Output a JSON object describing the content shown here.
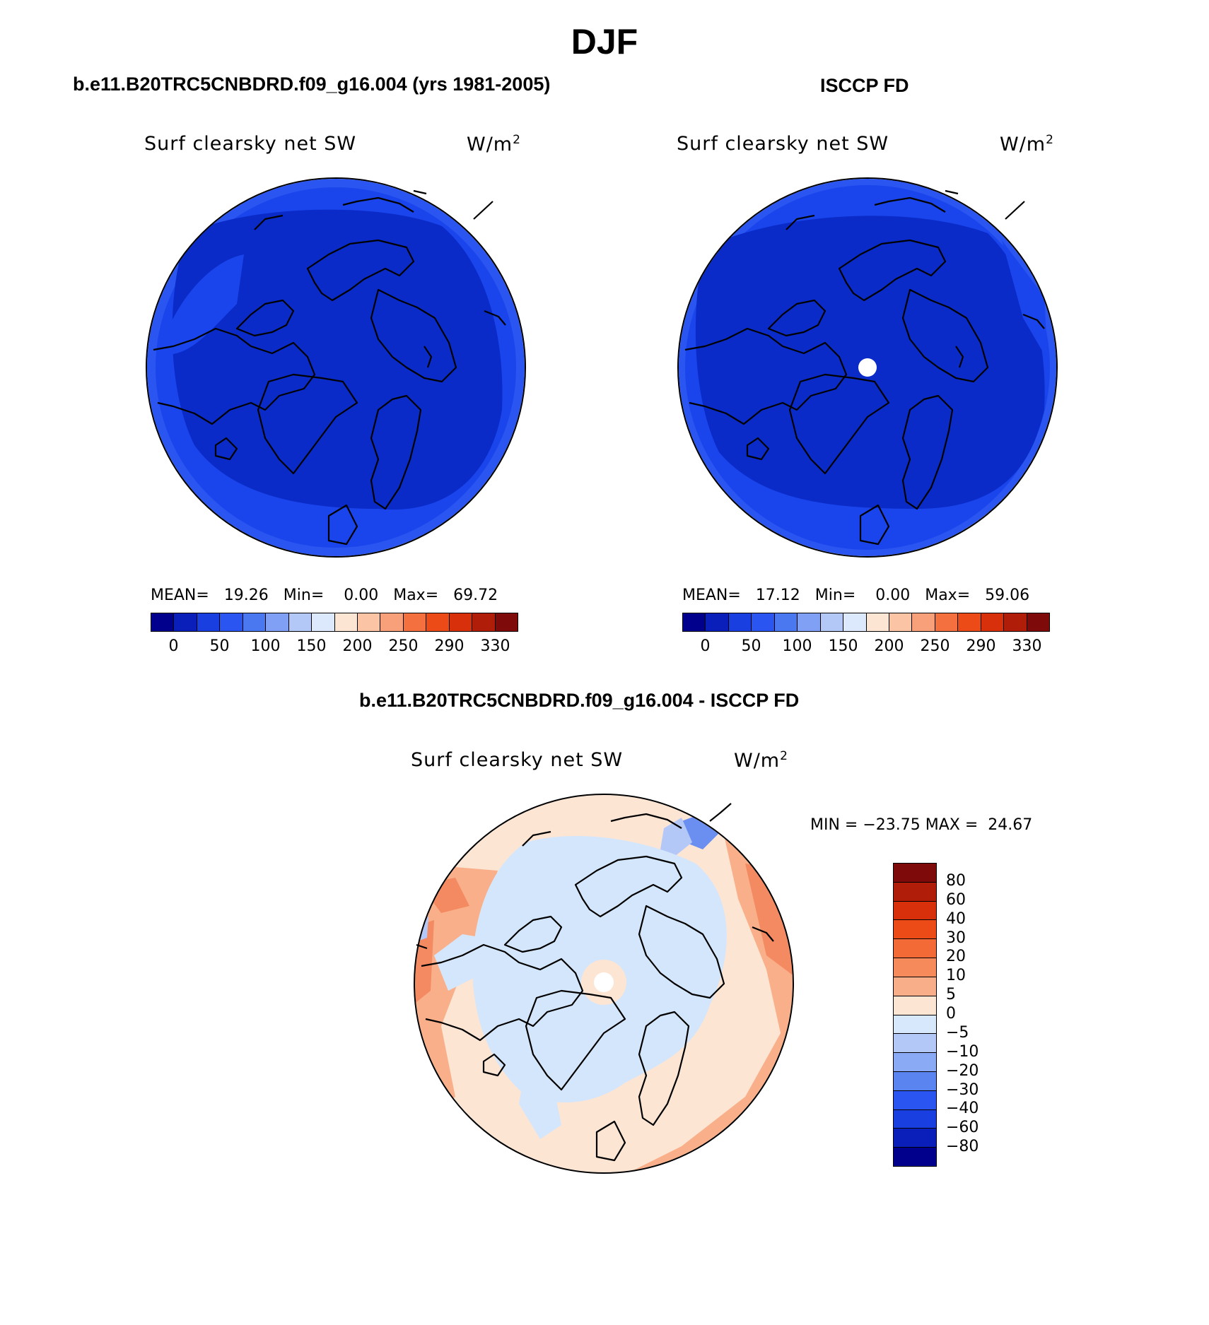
{
  "title": "DJF",
  "panels": [
    {
      "heading": "b.e11.B20TRC5CNBDRD.f09_g16.004 (yrs 1981-2005)",
      "field_label": "Surf clearsky net SW",
      "units_base": "W/m",
      "units_exp": "2",
      "stats": {
        "mean_label": "MEAN=",
        "mean": "19.26",
        "min_label": "Min=",
        "min": "0.00",
        "max_label": "Max=",
        "max": "69.72"
      },
      "pole_hole": false
    },
    {
      "heading": "ISCCP FD",
      "field_label": "Surf clearsky net SW",
      "units_base": "W/m",
      "units_exp": "2",
      "stats": {
        "mean_label": "MEAN=",
        "mean": "17.12",
        "min_label": "Min=",
        "min": "0.00",
        "max_label": "Max=",
        "max": "59.06"
      },
      "pole_hole": true
    }
  ],
  "colorbar_levels": [
    "0",
    "50",
    "100",
    "150",
    "200",
    "250",
    "290",
    "330"
  ],
  "colorbar_colors": [
    "#00008c",
    "#0a1fb9",
    "#1a3fe0",
    "#2a55f0",
    "#4a78f0",
    "#7fa0f5",
    "#b4c8f8",
    "#dce8fc",
    "#fde5d4",
    "#fbc4a4",
    "#f8a07a",
    "#f4703f",
    "#ec4a16",
    "#d8300a",
    "#b01e0a",
    "#7e0a0a"
  ],
  "diff": {
    "heading": "b.e11.B20TRC5CNBDRD.f09_g16.004 - ISCCP FD",
    "field_label": "Surf clearsky net SW",
    "units_base": "W/m",
    "units_exp": "2",
    "minmax_text": "MIN = −23.75 MAX =  24.67",
    "levels": [
      "80",
      "60",
      "40",
      "30",
      "20",
      "10",
      "5",
      "0",
      "−5",
      "−10",
      "−20",
      "−30",
      "−40",
      "−60",
      "−80"
    ],
    "colors": [
      "#7e0a0a",
      "#b01e0a",
      "#d8300a",
      "#ec4a16",
      "#f46a36",
      "#f78a5a",
      "#f9ae8a",
      "#fde5d4",
      "#d8e8fc",
      "#b4c8f8",
      "#8aaaf5",
      "#5a85f0",
      "#2a55f0",
      "#1a3fe0",
      "#0a1fb9",
      "#00008c"
    ]
  },
  "map_colors": {
    "deep_blue": "#0a2bc8",
    "ring_blue": "#1a45ec",
    "outer_blue": "#2a55f0",
    "pale_blue": "#d4e6fc",
    "pale_orange": "#fde5d4",
    "salmon": "#f9b08a",
    "coral": "#f48a62",
    "mid_blue": "#6a8ff0"
  }
}
